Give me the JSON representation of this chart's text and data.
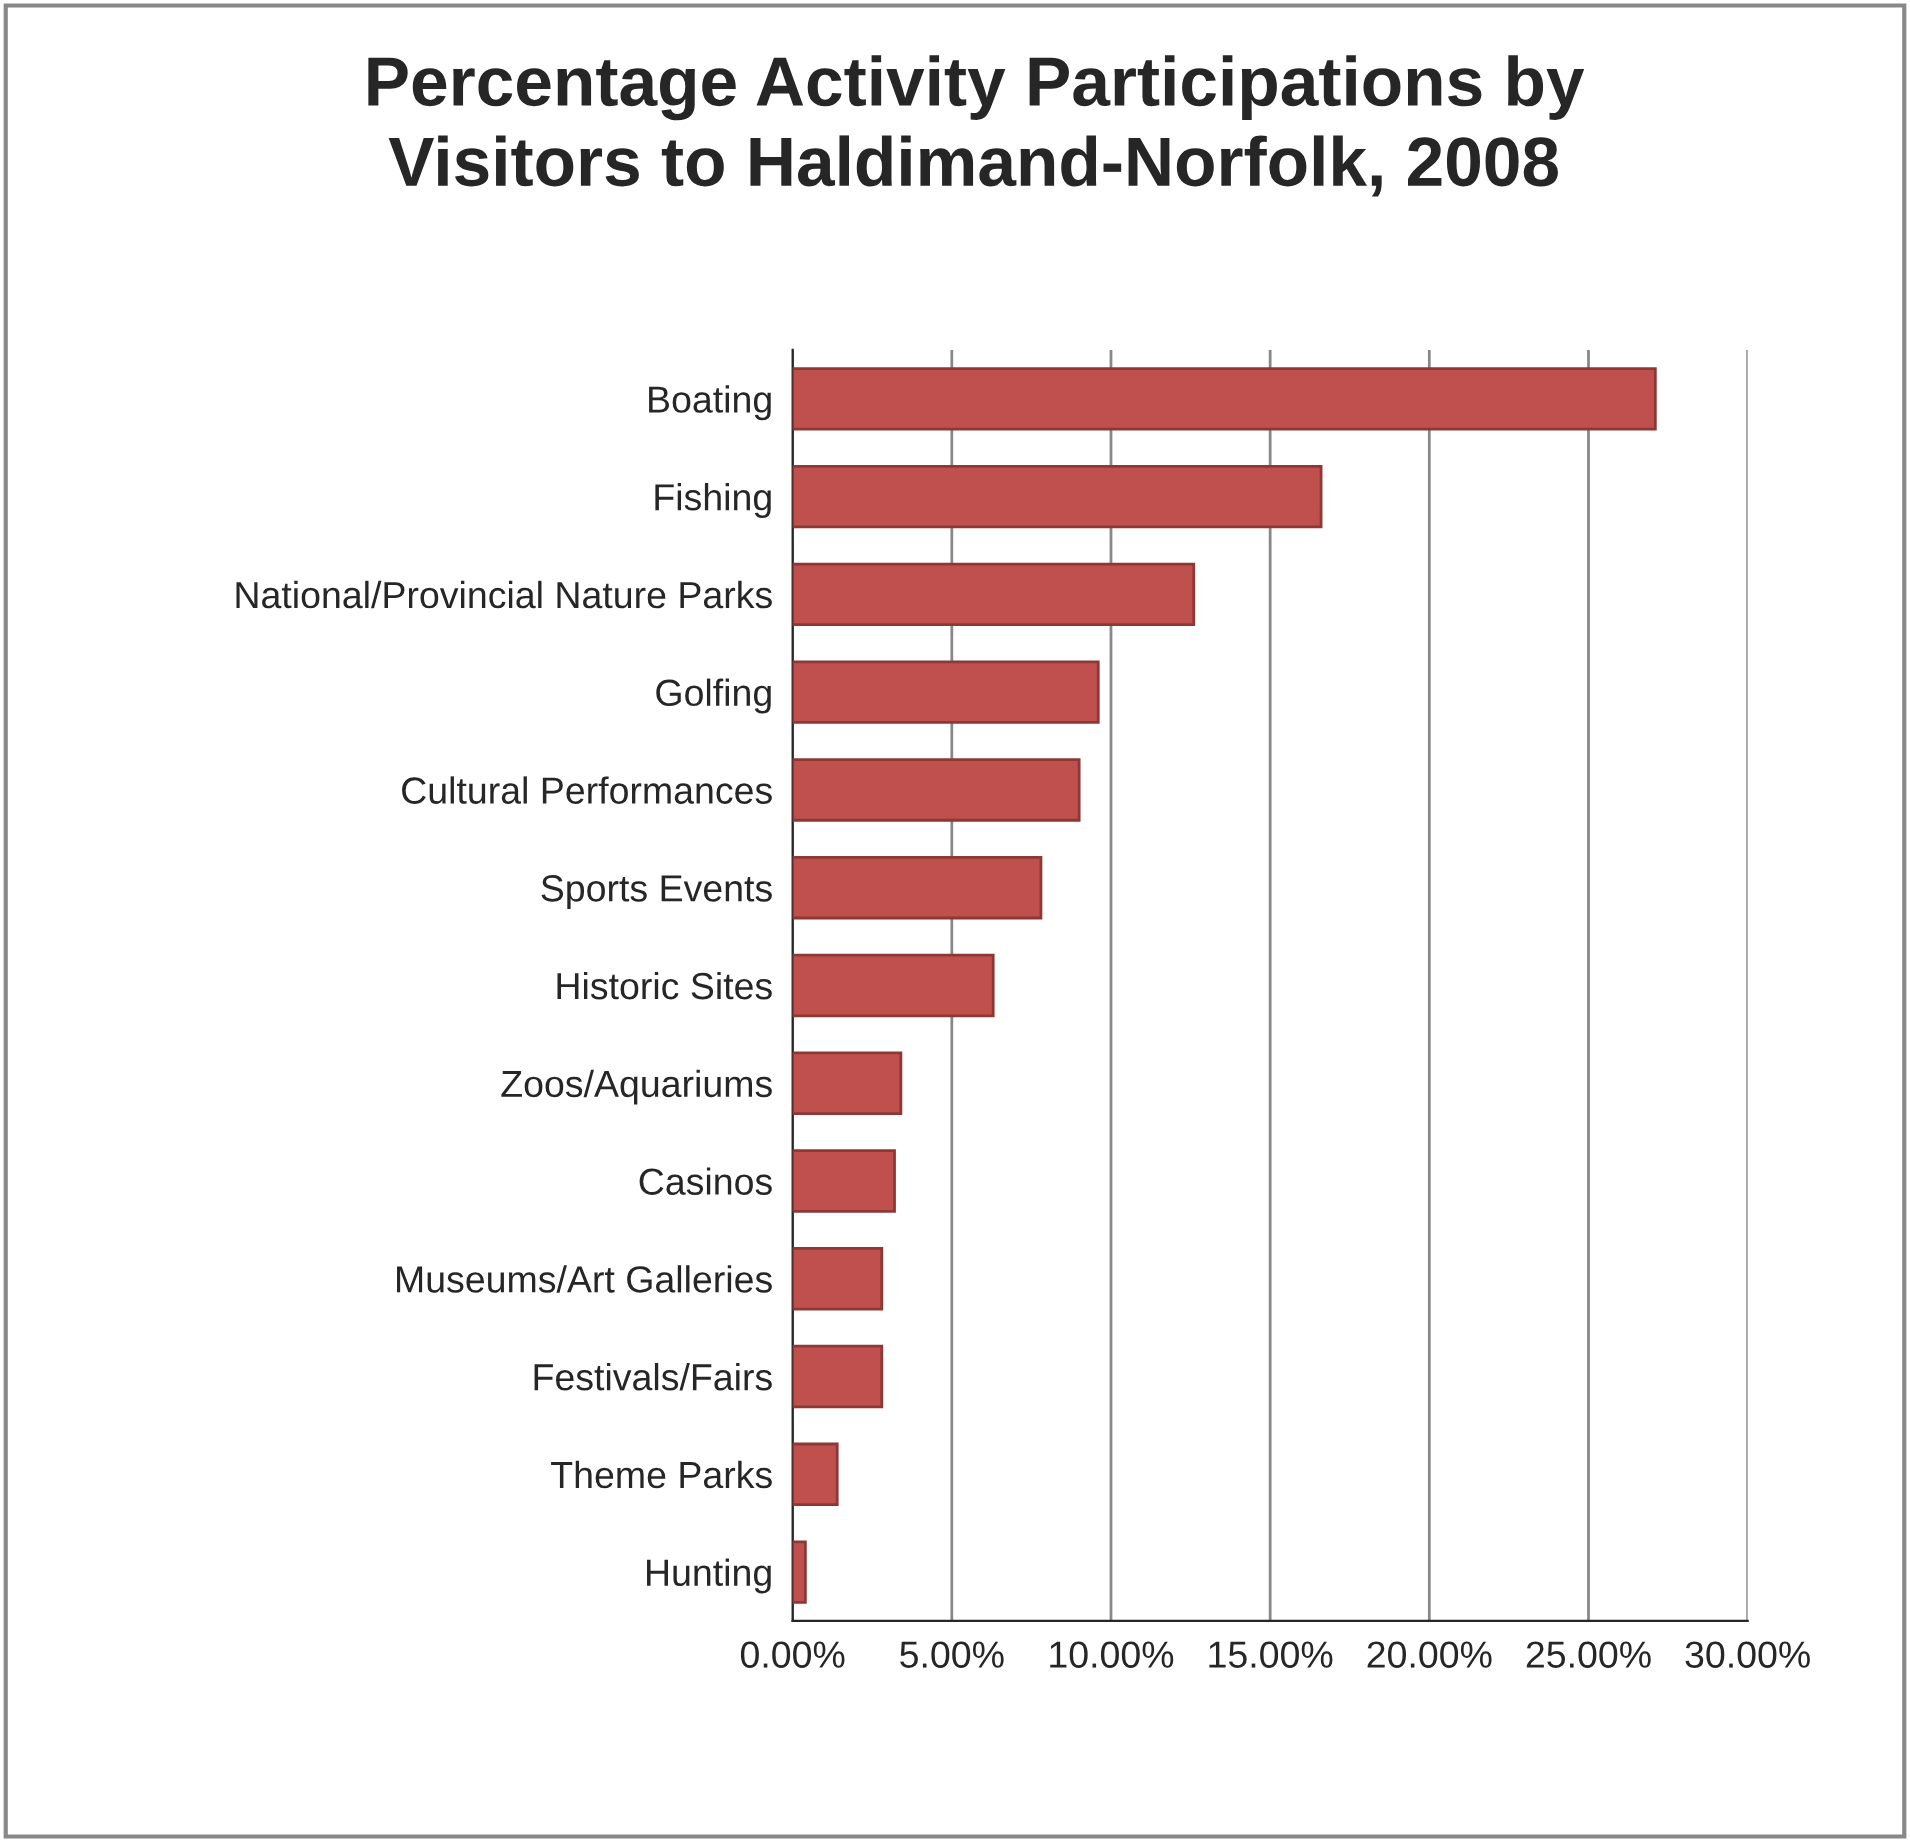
{
  "chart_data": {
    "type": "bar",
    "orientation": "horizontal",
    "title": "Percentage Activity Participations by\nVisitors to Haldimand-Norfolk, 2008",
    "categories": [
      "Boating",
      "Fishing",
      "National/Provincial Nature Parks",
      "Golfing",
      "Cultural Performances",
      "Sports Events",
      "Historic Sites",
      "Zoos/Aquariums",
      "Casinos",
      "Museums/Art Galleries",
      "Festivals/Fairs",
      "Theme Parks",
      "Hunting"
    ],
    "values": [
      27.1,
      16.6,
      12.6,
      9.6,
      9.0,
      7.8,
      6.3,
      3.4,
      3.2,
      2.8,
      2.8,
      1.4,
      0.4
    ],
    "color": "#c0504d",
    "xlim": [
      0,
      30
    ],
    "xticks": [
      {
        "value": 0,
        "label": "0.00%"
      },
      {
        "value": 5,
        "label": "5.00%"
      },
      {
        "value": 10,
        "label": "10.00%"
      },
      {
        "value": 15,
        "label": "15.00%"
      },
      {
        "value": 20,
        "label": "20.00%"
      },
      {
        "value": 25,
        "label": "25.00%"
      },
      {
        "value": 30,
        "label": "30.00%"
      }
    ],
    "grid": "x",
    "legend": false
  }
}
